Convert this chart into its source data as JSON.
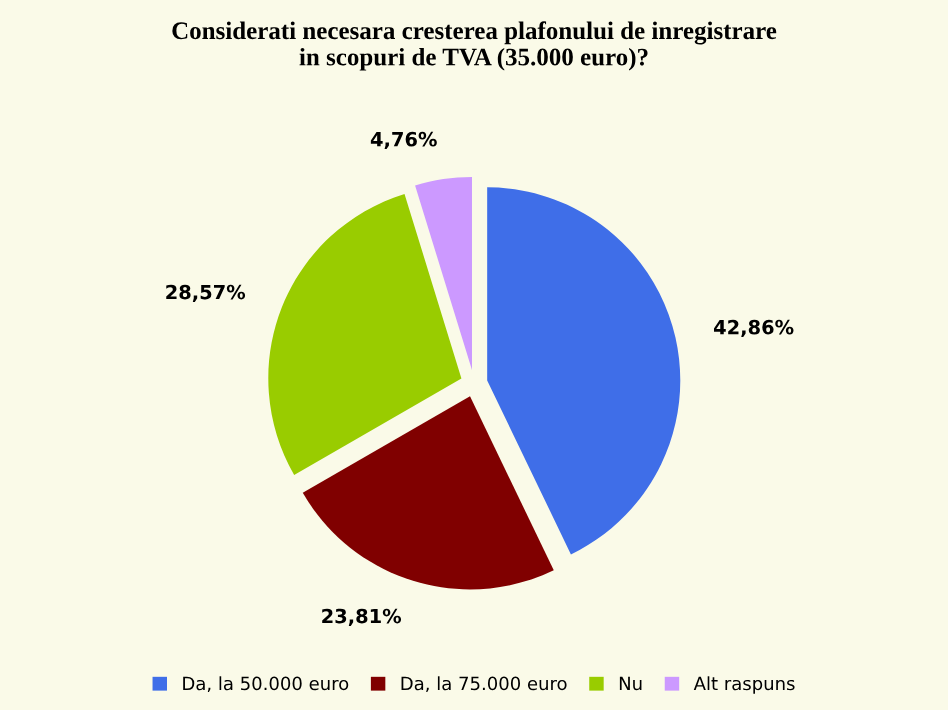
{
  "chart_data": {
    "type": "pie",
    "title": "Considerati necesara cresterea plafonului de inregistrare\nin scopuri de TVA (35.000 euro)?",
    "categories": [
      "Da, la 50.000 euro",
      "Da, la 75.000 euro",
      "Nu",
      "Alt raspuns"
    ],
    "values": [
      42.86,
      23.81,
      28.57,
      4.76
    ],
    "value_labels": [
      "42,86%",
      "23,81%",
      "28,57%",
      "4,76%"
    ],
    "colors": [
      "#3f6ee8",
      "#800000",
      "#99cc00",
      "#cc99ff"
    ],
    "legend": "bottom"
  }
}
